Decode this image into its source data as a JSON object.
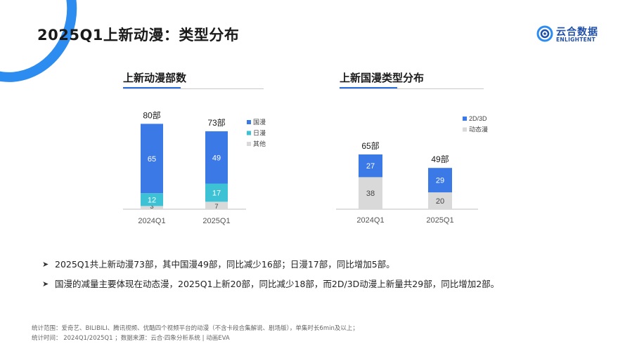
{
  "slide": {
    "title": "2025Q1上新动漫：类型分布"
  },
  "logo": {
    "cn": "云合数据",
    "en": "ENLIGHTENT",
    "icon": "enlightent-logo-icon",
    "color": "#1f4fa8"
  },
  "colors": {
    "guoman": "#3a79e6",
    "riman": "#3cc2d4",
    "other": "#d9d9d9",
    "d2d3": "#3a79e6",
    "dongtai": "#d9d9d9"
  },
  "chart_data": [
    {
      "type": "bar",
      "stacked": true,
      "title": "上新动漫部数",
      "categories": [
        "2024Q1",
        "2025Q1"
      ],
      "totals": [
        "80部",
        "73部"
      ],
      "total_values": [
        80,
        73
      ],
      "series": [
        {
          "name": "其他",
          "values": [
            3,
            7
          ],
          "color": "#d9d9d9"
        },
        {
          "name": "日漫",
          "values": [
            12,
            17
          ],
          "color": "#3cc2d4"
        },
        {
          "name": "国漫",
          "values": [
            65,
            49
          ],
          "color": "#3a79e6"
        }
      ],
      "legend": [
        "国漫",
        "日漫",
        "其他"
      ],
      "legend_placement": "right"
    },
    {
      "type": "bar",
      "stacked": true,
      "title": "上新国漫类型分布",
      "categories": [
        "2024Q1",
        "2025Q1"
      ],
      "totals": [
        "65部",
        "49部"
      ],
      "total_values": [
        65,
        49
      ],
      "series": [
        {
          "name": "动态漫",
          "values": [
            38,
            20
          ],
          "color": "#d9d9d9"
        },
        {
          "name": "2D/3D",
          "values": [
            27,
            29
          ],
          "color": "#3a79e6"
        }
      ],
      "legend": [
        "2D/3D",
        "动态漫"
      ],
      "legend_placement": "right"
    }
  ],
  "bullets": [
    "2025Q1共上新动漫73部，其中国漫49部，同比减少16部；日漫17部，同比增加5部。",
    "国漫的减量主要体现在动态漫，2025Q1上新20部，同比减少18部，而2D/3D动漫上新量共29部，同比增加2部。"
  ],
  "bullet_icon": "arrow-right-icon",
  "footer": {
    "scope": "统计范围：爱奇艺、BILIBILI、腾讯视频、优酷四个视频平台的动漫（不含卡段合集解说、剧场版），单集时长6min及以上；",
    "time_source": "统计时间： 2024Q1/2025Q1 ；数据来源：云合·四象分析系统 | 动画EVA"
  }
}
